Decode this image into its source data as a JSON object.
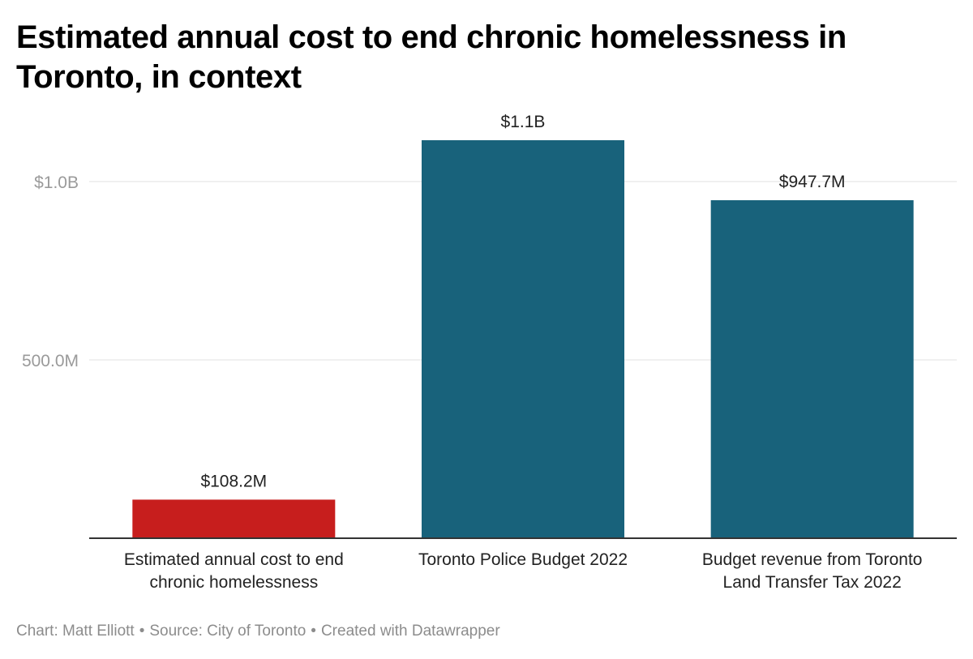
{
  "footer": {
    "chart_credit": "Chart: Matt Elliott",
    "source": "Source: City of Toronto",
    "tool": "Created with Datawrapper",
    "separator": "•"
  },
  "chart_data": {
    "type": "bar",
    "title": "Estimated annual cost to end chronic homelessness in Toronto, in context",
    "categories": [
      "Estimated annual cost to end chronic homelessness",
      "Toronto Police Budget 2022",
      "Budget revenue from Toronto Land Transfer Tax 2022"
    ],
    "category_lines": [
      [
        "Estimated annual cost to end",
        "chronic homelessness"
      ],
      [
        "Toronto Police Budget 2022"
      ],
      [
        "Budget revenue from Toronto",
        "Land Transfer Tax 2022"
      ]
    ],
    "values": [
      108200000,
      1116000000,
      947700000
    ],
    "value_labels": [
      "$108.2M",
      "$1.1B",
      "$947.7M"
    ],
    "colors": [
      "#c71e1d",
      "#18627b",
      "#18627b"
    ],
    "yticks": [
      500000000,
      1000000000
    ],
    "ytick_labels": [
      "500.0M",
      "$1.0B"
    ],
    "ylim": [
      0,
      1000000000
    ],
    "xlabel": "",
    "ylabel": "",
    "grid": true,
    "legend": "none"
  }
}
